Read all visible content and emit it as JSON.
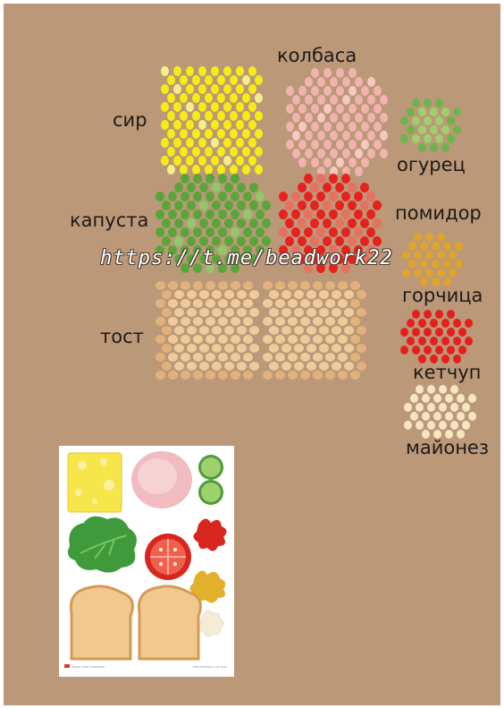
{
  "labels": {
    "cheese": "сир",
    "sausage": "колбаса",
    "cucumber": "огурец",
    "cabbage": "капуста",
    "tomato": "помидор",
    "toast": "тост",
    "mustard": "горчица",
    "ketchup": "кетчуп",
    "mayonnaise": "майонез"
  },
  "watermark": "https://t.me/beadwork22",
  "reference_sheet": {
    "footer_left": "BUILD YOUR SANDWICH",
    "footer_right": "FOR PERSONAL USE ONLY"
  },
  "colors": {
    "background": "#bb9878",
    "cheese": "#f5ec14",
    "sausage": "#f2b2ae",
    "cabbage": "#5aa53a",
    "cucumber": "#6cb44a",
    "tomato": "#e8201e",
    "toast": "#eecb9a",
    "mustard": "#e0a42a",
    "ketchup": "#e51f1c",
    "mayonnaise": "#f6e6c4"
  }
}
